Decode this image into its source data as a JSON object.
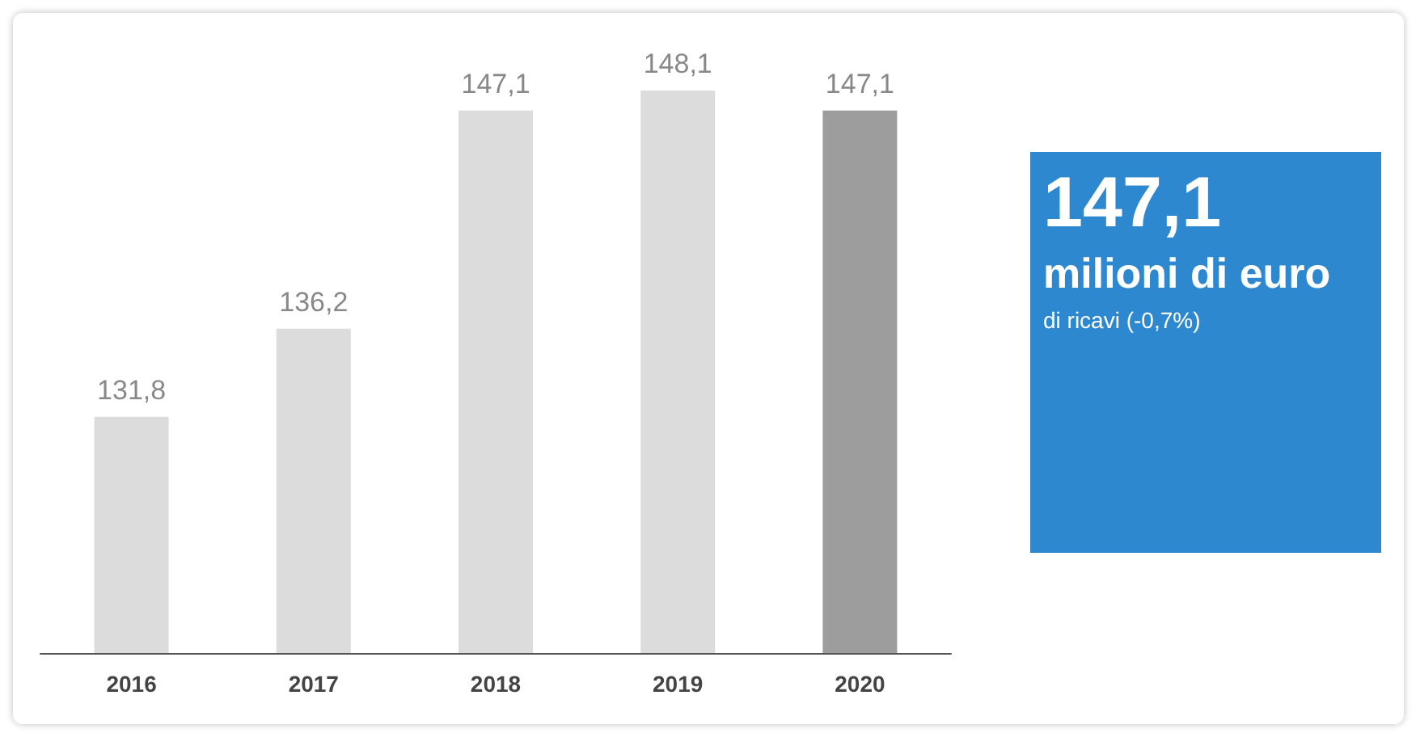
{
  "chart_data": [
    {
      "type": "bar",
      "categories": [
        "2016",
        "2017",
        "2018",
        "2019",
        "2020"
      ],
      "values": [
        131.8,
        136.2,
        147.1,
        148.1,
        147.1
      ],
      "colors": [
        "#dcdcdc",
        "#dcdcdc",
        "#dcdcdc",
        "#dcdcdc",
        "#9d9d9d"
      ],
      "value_labels": [
        "131,8",
        "136,2",
        "147,1",
        "148,1",
        "147,1"
      ],
      "ylim": [
        120,
        148.1
      ]
    },
    {
      "type": "other",
      "title": "147,1",
      "subtitle": "milioni di euro",
      "annotations": [
        "di ricavi (-0,7%)"
      ]
    }
  ]
}
